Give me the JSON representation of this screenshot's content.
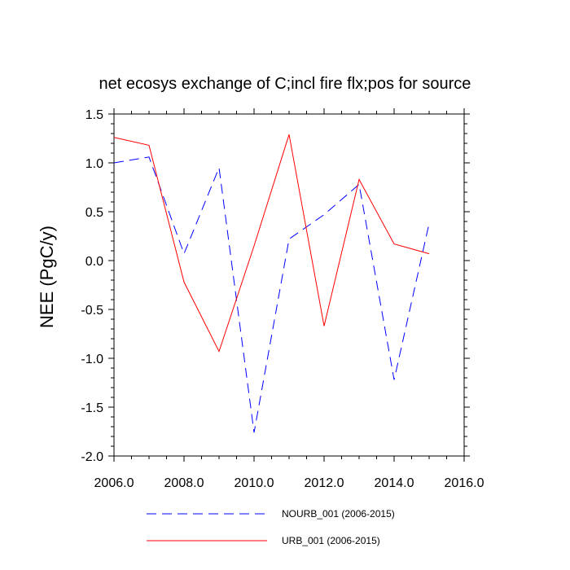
{
  "chart_data": {
    "type": "line",
    "title": "net ecosys exchange of C;incl fire flx;pos for source",
    "xlabel": "",
    "ylabel": "NEE  (PgC/y)",
    "xlim": [
      2006.0,
      2016.0
    ],
    "ylim": [
      -2.0,
      1.5
    ],
    "x_ticks": [
      "2006.0",
      "2008.0",
      "2010.0",
      "2012.0",
      "2014.0",
      "2016.0"
    ],
    "y_ticks": [
      "1.5",
      "1.0",
      "0.5",
      "0.0",
      "-0.5",
      "-1.0",
      "-1.5",
      "-2.0"
    ],
    "grid": false,
    "legend_position": "bottom",
    "x": [
      2006,
      2007,
      2008,
      2009,
      2010,
      2011,
      2012,
      2013,
      2014,
      2015
    ],
    "series": [
      {
        "name": "NOURB_001 (2006-2015)",
        "color": "#0000ff",
        "style": "dashed",
        "values": [
          1.0,
          1.06,
          0.07,
          0.95,
          -1.76,
          0.22,
          0.47,
          0.78,
          -1.22,
          0.38
        ]
      },
      {
        "name": "URB_001 (2006-2015)",
        "color": "#ff0000",
        "style": "solid",
        "values": [
          1.26,
          1.18,
          -0.22,
          -0.93,
          0.15,
          1.29,
          -0.67,
          0.83,
          0.17,
          0.07
        ]
      }
    ]
  }
}
